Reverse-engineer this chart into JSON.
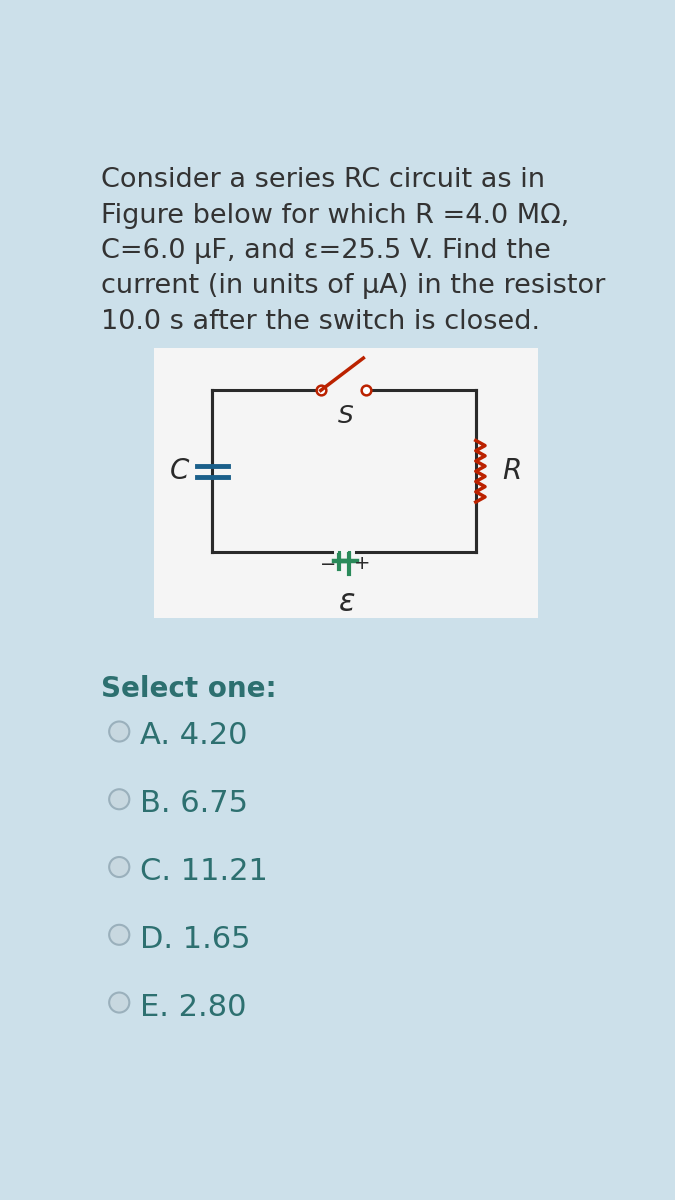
{
  "background_color": "#cce0ea",
  "question_text_color": "#333333",
  "question_lines": [
    "Consider a series RC circuit as in",
    "Figure below for which R =4.0 MΩ,",
    "C=6.0 μF, and ε=25.5 V. Find the",
    "current (in units of μA) in the resistor",
    "10.0 s after the switch is closed."
  ],
  "circuit_bg": "#f5f5f5",
  "circuit_wire_color": "#2a2a2a",
  "capacitor_color": "#1a5f8a",
  "resistor_color": "#bb2200",
  "switch_color": "#bb2200",
  "battery_color": "#2a8a5a",
  "label_color": "#2a2a2a",
  "select_one_text": "Select one:",
  "select_color": "#2d7070",
  "options": [
    "A. 4.20",
    "B. 6.75",
    "C. 11.21",
    "D. 1.65",
    "E. 2.80"
  ],
  "option_text_color": "#2d7070",
  "radio_fill_color": "#c8d8e0",
  "radio_edge_color": "#9ab0bc"
}
